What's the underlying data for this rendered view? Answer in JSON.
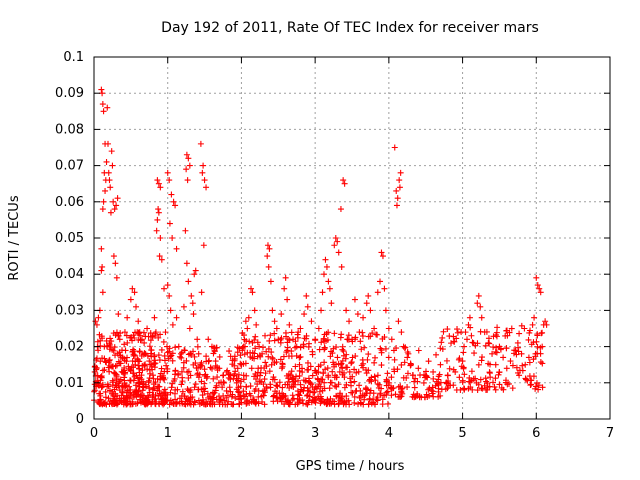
{
  "chart_data": {
    "type": "scatter",
    "title": "Day 192 of 2011, Rate Of TEC Index for receiver mars",
    "xlabel": "GPS time / hours",
    "ylabel": "ROTI / TECUs",
    "xlim": [
      0,
      7
    ],
    "ylim": [
      0,
      0.1
    ],
    "xticks": [
      "0",
      "1",
      "2",
      "3",
      "4",
      "5",
      "6",
      "7"
    ],
    "yticks": [
      "0",
      "0.01",
      "0.02",
      "0.03",
      "0.04",
      "0.05",
      "0.06",
      "0.07",
      "0.08",
      "0.09",
      "0.1"
    ],
    "grid": true,
    "marker": "+",
    "color": "#ff0000",
    "series": [
      {
        "points": [
          [
            0.02,
            0.027
          ],
          [
            0.04,
            0.026
          ],
          [
            0.06,
            0.028
          ],
          [
            0.08,
            0.03
          ],
          [
            0.05,
            0.012
          ],
          [
            0.03,
            0.009
          ],
          [
            0.07,
            0.007
          ],
          [
            0.01,
            0.013
          ],
          [
            0.1,
            0.091
          ],
          [
            0.11,
            0.09
          ],
          [
            0.12,
            0.087
          ],
          [
            0.13,
            0.085
          ],
          [
            0.15,
            0.076
          ],
          [
            0.17,
            0.071
          ],
          [
            0.14,
            0.068
          ],
          [
            0.16,
            0.066
          ],
          [
            0.15,
            0.063
          ],
          [
            0.13,
            0.06
          ],
          [
            0.12,
            0.058
          ],
          [
            0.1,
            0.047
          ],
          [
            0.11,
            0.042
          ],
          [
            0.1,
            0.041
          ],
          [
            0.12,
            0.035
          ],
          [
            0.14,
            0.02
          ],
          [
            0.18,
            0.086
          ],
          [
            0.19,
            0.076
          ],
          [
            0.2,
            0.068
          ],
          [
            0.21,
            0.066
          ],
          [
            0.22,
            0.064
          ],
          [
            0.24,
            0.074
          ],
          [
            0.25,
            0.07
          ],
          [
            0.23,
            0.057
          ],
          [
            0.26,
            0.06
          ],
          [
            0.28,
            0.058
          ],
          [
            0.3,
            0.059
          ],
          [
            0.32,
            0.061
          ],
          [
            0.27,
            0.045
          ],
          [
            0.29,
            0.043
          ],
          [
            0.31,
            0.039
          ],
          [
            0.33,
            0.029
          ],
          [
            0.35,
            0.022
          ],
          [
            0.38,
            0.019
          ],
          [
            0.42,
            0.024
          ],
          [
            0.45,
            0.028
          ],
          [
            0.5,
            0.033
          ],
          [
            0.52,
            0.036
          ],
          [
            0.55,
            0.035
          ],
          [
            0.57,
            0.031
          ],
          [
            0.6,
            0.027
          ],
          [
            0.62,
            0.024
          ],
          [
            0.65,
            0.022
          ],
          [
            0.68,
            0.021
          ],
          [
            0.7,
            0.018
          ],
          [
            0.72,
            0.025
          ],
          [
            0.75,
            0.016
          ],
          [
            0.78,
            0.019
          ],
          [
            0.8,
            0.023
          ],
          [
            0.82,
            0.028
          ],
          [
            0.84,
            0.024
          ],
          [
            0.86,
            0.055
          ],
          [
            0.87,
            0.058
          ],
          [
            0.88,
            0.057
          ],
          [
            0.85,
            0.052
          ],
          [
            0.9,
            0.05
          ],
          [
            0.89,
            0.045
          ],
          [
            0.86,
            0.066
          ],
          [
            0.88,
            0.065
          ],
          [
            0.9,
            0.064
          ],
          [
            0.92,
            0.044
          ],
          [
            0.95,
            0.036
          ],
          [
            0.97,
            0.024
          ],
          [
            0.99,
            0.02
          ],
          [
            1.0,
            0.068
          ],
          [
            1.02,
            0.066
          ],
          [
            1.05,
            0.062
          ],
          [
            1.08,
            0.06
          ],
          [
            1.1,
            0.059
          ],
          [
            1.03,
            0.054
          ],
          [
            1.06,
            0.05
          ],
          [
            1.12,
            0.047
          ],
          [
            1.0,
            0.037
          ],
          [
            1.02,
            0.034
          ],
          [
            1.04,
            0.03
          ],
          [
            1.07,
            0.026
          ],
          [
            1.12,
            0.028
          ],
          [
            1.15,
            0.02
          ],
          [
            1.18,
            0.018
          ],
          [
            1.22,
            0.031
          ],
          [
            1.26,
            0.073
          ],
          [
            1.28,
            0.072
          ],
          [
            1.3,
            0.07
          ],
          [
            1.25,
            0.069
          ],
          [
            1.27,
            0.066
          ],
          [
            1.24,
            0.052
          ],
          [
            1.26,
            0.043
          ],
          [
            1.28,
            0.038
          ],
          [
            1.32,
            0.034
          ],
          [
            1.34,
            0.032
          ],
          [
            1.36,
            0.04
          ],
          [
            1.38,
            0.041
          ],
          [
            1.35,
            0.029
          ],
          [
            1.4,
            0.022
          ],
          [
            1.42,
            0.018
          ],
          [
            1.3,
            0.025
          ],
          [
            1.45,
            0.076
          ],
          [
            1.47,
            0.068
          ],
          [
            1.48,
            0.07
          ],
          [
            1.5,
            0.066
          ],
          [
            1.52,
            0.064
          ],
          [
            1.49,
            0.048
          ],
          [
            1.46,
            0.035
          ],
          [
            1.55,
            0.022
          ],
          [
            1.6,
            0.02
          ],
          [
            1.65,
            0.016
          ],
          [
            1.7,
            0.014
          ],
          [
            1.75,
            0.012
          ],
          [
            1.8,
            0.013
          ],
          [
            1.85,
            0.011
          ],
          [
            1.9,
            0.012
          ],
          [
            1.95,
            0.014
          ],
          [
            2.0,
            0.015
          ],
          [
            2.03,
            0.02
          ],
          [
            2.06,
            0.027
          ],
          [
            2.08,
            0.025
          ],
          [
            2.1,
            0.028
          ],
          [
            2.13,
            0.036
          ],
          [
            2.15,
            0.035
          ],
          [
            2.18,
            0.03
          ],
          [
            2.2,
            0.026
          ],
          [
            2.24,
            0.02
          ],
          [
            2.28,
            0.018
          ],
          [
            2.32,
            0.023
          ],
          [
            2.35,
            0.045
          ],
          [
            2.36,
            0.048
          ],
          [
            2.38,
            0.047
          ],
          [
            2.37,
            0.042
          ],
          [
            2.4,
            0.038
          ],
          [
            2.42,
            0.03
          ],
          [
            2.45,
            0.027
          ],
          [
            2.48,
            0.025
          ],
          [
            2.5,
            0.022
          ],
          [
            2.54,
            0.029
          ],
          [
            2.58,
            0.036
          ],
          [
            2.6,
            0.039
          ],
          [
            2.62,
            0.033
          ],
          [
            2.65,
            0.026
          ],
          [
            2.7,
            0.022
          ],
          [
            2.75,
            0.02
          ],
          [
            2.8,
            0.025
          ],
          [
            2.85,
            0.029
          ],
          [
            2.88,
            0.034
          ],
          [
            2.9,
            0.031
          ],
          [
            2.95,
            0.027
          ],
          [
            3.0,
            0.022
          ],
          [
            3.05,
            0.025
          ],
          [
            3.08,
            0.03
          ],
          [
            3.1,
            0.035
          ],
          [
            3.12,
            0.04
          ],
          [
            3.14,
            0.044
          ],
          [
            3.16,
            0.042
          ],
          [
            3.18,
            0.038
          ],
          [
            3.2,
            0.036
          ],
          [
            3.22,
            0.032
          ],
          [
            3.26,
            0.048
          ],
          [
            3.28,
            0.05
          ],
          [
            3.3,
            0.049
          ],
          [
            3.32,
            0.046
          ],
          [
            3.35,
            0.058
          ],
          [
            3.38,
            0.066
          ],
          [
            3.4,
            0.065
          ],
          [
            3.36,
            0.042
          ],
          [
            3.42,
            0.03
          ],
          [
            3.46,
            0.027
          ],
          [
            3.5,
            0.022
          ],
          [
            3.54,
            0.033
          ],
          [
            3.58,
            0.029
          ],
          [
            3.6,
            0.024
          ],
          [
            3.65,
            0.028
          ],
          [
            3.7,
            0.032
          ],
          [
            3.72,
            0.034
          ],
          [
            3.75,
            0.03
          ],
          [
            3.8,
            0.025
          ],
          [
            3.85,
            0.035
          ],
          [
            3.88,
            0.038
          ],
          [
            3.9,
            0.046
          ],
          [
            3.92,
            0.045
          ],
          [
            3.94,
            0.036
          ],
          [
            3.96,
            0.03
          ],
          [
            4.0,
            0.025
          ],
          [
            4.04,
            0.022
          ],
          [
            4.08,
            0.075
          ],
          [
            4.1,
            0.063
          ],
          [
            4.12,
            0.061
          ],
          [
            4.14,
            0.066
          ],
          [
            4.16,
            0.068
          ],
          [
            4.15,
            0.064
          ],
          [
            4.11,
            0.059
          ],
          [
            4.13,
            0.027
          ],
          [
            4.17,
            0.024
          ],
          [
            4.2,
            0.02
          ],
          [
            4.25,
            0.017
          ],
          [
            4.3,
            0.015
          ],
          [
            4.4,
            0.014
          ],
          [
            4.5,
            0.012
          ],
          [
            4.6,
            0.013
          ],
          [
            4.7,
            0.015
          ],
          [
            4.8,
            0.012
          ],
          [
            4.9,
            0.013
          ],
          [
            5.0,
            0.016
          ],
          [
            5.02,
            0.02
          ],
          [
            5.04,
            0.024
          ],
          [
            5.06,
            0.022
          ],
          [
            5.08,
            0.026
          ],
          [
            5.1,
            0.028
          ],
          [
            5.12,
            0.023
          ],
          [
            5.15,
            0.021
          ],
          [
            5.2,
            0.032
          ],
          [
            5.22,
            0.034
          ],
          [
            5.24,
            0.031
          ],
          [
            5.26,
            0.028
          ],
          [
            5.3,
            0.024
          ],
          [
            5.35,
            0.021
          ],
          [
            5.4,
            0.018
          ],
          [
            5.45,
            0.015
          ],
          [
            5.5,
            0.02
          ],
          [
            5.55,
            0.017
          ],
          [
            5.6,
            0.014
          ],
          [
            5.65,
            0.016
          ],
          [
            5.7,
            0.019
          ],
          [
            5.75,
            0.021
          ],
          [
            5.8,
            0.018
          ],
          [
            5.85,
            0.015
          ],
          [
            5.9,
            0.017
          ],
          [
            5.95,
            0.026
          ],
          [
            5.97,
            0.028
          ],
          [
            6.0,
            0.039
          ],
          [
            6.02,
            0.037
          ],
          [
            6.04,
            0.036
          ],
          [
            6.06,
            0.035
          ],
          [
            6.08,
            0.02
          ],
          [
            6.1,
            0.026
          ],
          [
            6.12,
            0.027
          ],
          [
            6.14,
            0.026
          ]
        ]
      }
    ]
  }
}
